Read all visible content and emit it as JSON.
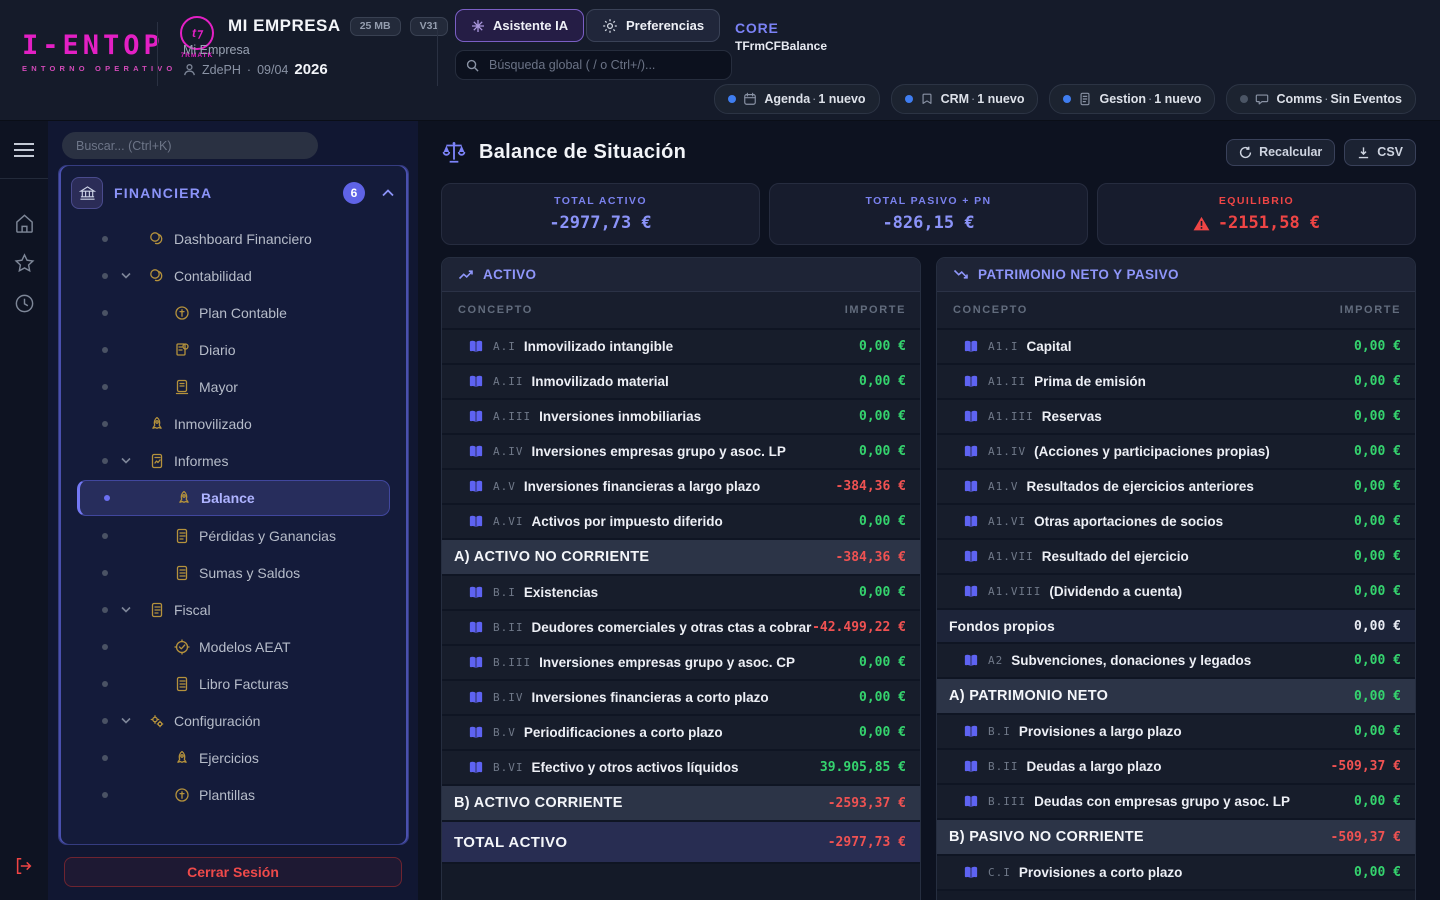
{
  "colors": {
    "accent_indigo": "#7c83f8",
    "brand_magenta": "#e320c4",
    "green": "#35d46e",
    "red": "#ef4545",
    "gold": "#b5923c"
  },
  "header": {
    "logo_title": "I-ENTOP",
    "logo_subtitle": "ENTORNO OPERATIVO",
    "brand_mark": "7RMATK",
    "company_name": "MI EMPRESA",
    "badge_size": "25 MB",
    "badge_version": "V31",
    "company_sub": "Mi Empresa",
    "user": "ZdePH",
    "date": "09/04",
    "year": "2026",
    "assistant_button": "Asistente IA",
    "preferences_button": "Preferencias",
    "search_placeholder": "Búsqueda global ( / o Ctrl+/)...",
    "core_label": "CORE",
    "core_form": "TFrmCFBalance",
    "pills": [
      {
        "label": "Agenda",
        "status": "1 nuevo",
        "active": true,
        "icon": "calendar-icon"
      },
      {
        "label": "CRM",
        "status": "1 nuevo",
        "active": true,
        "icon": "bookmark-icon"
      },
      {
        "label": "Gestion",
        "status": "1 nuevo",
        "active": true,
        "icon": "document-icon"
      },
      {
        "label": "Comms",
        "status": "Sin Eventos",
        "active": false,
        "icon": "chat-icon"
      }
    ]
  },
  "sidebar": {
    "search_placeholder": "Buscar... (Ctrl+K)",
    "section": {
      "label": "FINANCIERA",
      "badge": "6"
    },
    "items": [
      {
        "label": "Dashboard Financiero",
        "level": 1,
        "chevron": false,
        "selected": false,
        "icon": "coins-icon"
      },
      {
        "label": "Contabilidad",
        "level": 1,
        "chevron": true,
        "selected": false,
        "icon": "coins-icon"
      },
      {
        "label": "Plan Contable",
        "level": 2,
        "chevron": false,
        "selected": false,
        "icon": "coin-icon"
      },
      {
        "label": "Diario",
        "level": 2,
        "chevron": false,
        "selected": false,
        "icon": "journal-icon"
      },
      {
        "label": "Mayor",
        "level": 2,
        "chevron": false,
        "selected": false,
        "icon": "ledger-icon"
      },
      {
        "label": "Inmovilizado",
        "level": 1,
        "chevron": false,
        "selected": false,
        "icon": "rocket-icon"
      },
      {
        "label": "Informes",
        "level": 1,
        "chevron": true,
        "selected": false,
        "icon": "report-icon"
      },
      {
        "label": "Balance",
        "level": 2,
        "chevron": false,
        "selected": true,
        "icon": "rocket-icon"
      },
      {
        "label": "Pérdidas y Ganancias",
        "level": 2,
        "chevron": false,
        "selected": false,
        "icon": "document-icon"
      },
      {
        "label": "Sumas y Saldos",
        "level": 2,
        "chevron": false,
        "selected": false,
        "icon": "list-icon"
      },
      {
        "label": "Fiscal",
        "level": 1,
        "chevron": true,
        "selected": false,
        "icon": "document-icon"
      },
      {
        "label": "Modelos AEAT",
        "level": 2,
        "chevron": false,
        "selected": false,
        "icon": "stamp-icon"
      },
      {
        "label": "Libro Facturas",
        "level": 2,
        "chevron": false,
        "selected": false,
        "icon": "list-icon"
      },
      {
        "label": "Configuración",
        "level": 1,
        "chevron": true,
        "selected": false,
        "icon": "gears-icon"
      },
      {
        "label": "Ejercicios",
        "level": 2,
        "chevron": false,
        "selected": false,
        "icon": "rocket-icon"
      },
      {
        "label": "Plantillas",
        "level": 2,
        "chevron": false,
        "selected": false,
        "icon": "coin-icon"
      }
    ],
    "logout_button": "Cerrar Sesión"
  },
  "main": {
    "title": "Balance de Situación",
    "recalc_button": "Recalcular",
    "csv_button": "CSV",
    "cards": [
      {
        "label": "TOTAL ACTIVO",
        "value": "-2977,73 €",
        "tone": "indigo",
        "warning": false
      },
      {
        "label": "TOTAL PASIVO + PN",
        "value": "-826,15 €",
        "tone": "indigo",
        "warning": false
      },
      {
        "label": "EQUILIBRIO",
        "value": "-2151,58 €",
        "tone": "red",
        "warning": true
      }
    ],
    "tables": [
      {
        "title": "ACTIVO",
        "icon": "trend-up-icon",
        "col_concept": "CONCEPTO",
        "col_amount": "IMPORTE",
        "rows": [
          {
            "type": "item",
            "code": "A.I",
            "label": "Inmovilizado intangible",
            "value": "0,00 €",
            "tone": "green"
          },
          {
            "type": "item",
            "code": "A.II",
            "label": "Inmovilizado material",
            "value": "0,00 €",
            "tone": "green"
          },
          {
            "type": "item",
            "code": "A.III",
            "label": "Inversiones inmobiliarias",
            "value": "0,00 €",
            "tone": "green"
          },
          {
            "type": "item",
            "code": "A.IV",
            "label": "Inversiones empresas grupo y asoc. LP",
            "value": "0,00 €",
            "tone": "green"
          },
          {
            "type": "item",
            "code": "A.V",
            "label": "Inversiones financieras a largo plazo",
            "value": "-384,36 €",
            "tone": "red"
          },
          {
            "type": "item",
            "code": "A.VI",
            "label": "Activos por impuesto diferido",
            "value": "0,00 €",
            "tone": "green"
          },
          {
            "type": "section",
            "label": "A) ACTIVO NO CORRIENTE",
            "value": "-384,36 €",
            "tone": "red"
          },
          {
            "type": "item",
            "code": "B.I",
            "label": "Existencias",
            "value": "0,00 €",
            "tone": "green"
          },
          {
            "type": "item",
            "code": "B.II",
            "label": "Deudores comerciales y otras ctas a cobrar",
            "value": "-42.499,22 €",
            "tone": "red"
          },
          {
            "type": "item",
            "code": "B.III",
            "label": "Inversiones empresas grupo y asoc. CP",
            "value": "0,00 €",
            "tone": "green"
          },
          {
            "type": "item",
            "code": "B.IV",
            "label": "Inversiones financieras a corto plazo",
            "value": "0,00 €",
            "tone": "green"
          },
          {
            "type": "item",
            "code": "B.V",
            "label": "Periodificaciones a corto plazo",
            "value": "0,00 €",
            "tone": "green"
          },
          {
            "type": "item",
            "code": "B.VI",
            "label": "Efectivo y otros activos líquidos",
            "value": "39.905,85 €",
            "tone": "green"
          },
          {
            "type": "section",
            "label": "B) ACTIVO CORRIENTE",
            "value": "-2593,37 €",
            "tone": "red"
          },
          {
            "type": "total",
            "label": "TOTAL ACTIVO",
            "value": "-2977,73 €",
            "tone": "red"
          }
        ]
      },
      {
        "title": "PATRIMONIO NETO Y PASIVO",
        "icon": "trend-down-icon",
        "col_concept": "CONCEPTO",
        "col_amount": "IMPORTE",
        "rows": [
          {
            "type": "item",
            "code": "A1.I",
            "label": "Capital",
            "value": "0,00 €",
            "tone": "green"
          },
          {
            "type": "item",
            "code": "A1.II",
            "label": "Prima de emisión",
            "value": "0,00 €",
            "tone": "green"
          },
          {
            "type": "item",
            "code": "A1.III",
            "label": "Reservas",
            "value": "0,00 €",
            "tone": "green"
          },
          {
            "type": "item",
            "code": "A1.IV",
            "label": "(Acciones y participaciones propias)",
            "value": "0,00 €",
            "tone": "green"
          },
          {
            "type": "item",
            "code": "A1.V",
            "label": "Resultados de ejercicios anteriores",
            "value": "0,00 €",
            "tone": "green"
          },
          {
            "type": "item",
            "code": "A1.VI",
            "label": "Otras aportaciones de socios",
            "value": "0,00 €",
            "tone": "green"
          },
          {
            "type": "item",
            "code": "A1.VII",
            "label": "Resultado del ejercicio",
            "value": "0,00 €",
            "tone": "green"
          },
          {
            "type": "item",
            "code": "A1.VIII",
            "label": "(Dividendo a cuenta)",
            "value": "0,00 €",
            "tone": "green"
          },
          {
            "type": "subtotal",
            "label": "Fondos propios",
            "value": "0,00 €",
            "tone": "white"
          },
          {
            "type": "item",
            "code": "A2",
            "label": "Subvenciones, donaciones y legados",
            "value": "0,00 €",
            "tone": "green"
          },
          {
            "type": "section",
            "label": "A) PATRIMONIO NETO",
            "value": "0,00 €",
            "tone": "green"
          },
          {
            "type": "item",
            "code": "B.I",
            "label": "Provisiones a largo plazo",
            "value": "0,00 €",
            "tone": "green"
          },
          {
            "type": "item",
            "code": "B.II",
            "label": "Deudas a largo plazo",
            "value": "-509,37 €",
            "tone": "red"
          },
          {
            "type": "item",
            "code": "B.III",
            "label": "Deudas con empresas grupo y asoc. LP",
            "value": "0,00 €",
            "tone": "green"
          },
          {
            "type": "section",
            "label": "B) PASIVO NO CORRIENTE",
            "value": "-509,37 €",
            "tone": "red"
          },
          {
            "type": "item",
            "code": "C.I",
            "label": "Provisiones a corto plazo",
            "value": "0,00 €",
            "tone": "green"
          }
        ]
      }
    ]
  }
}
